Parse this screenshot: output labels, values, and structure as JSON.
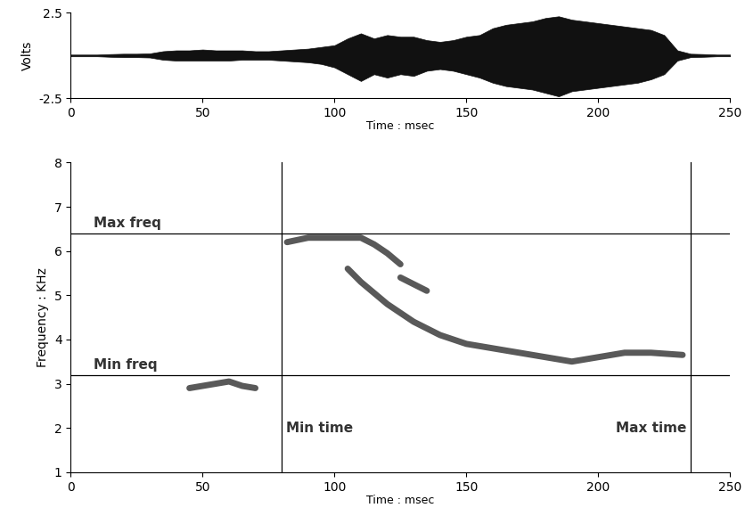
{
  "chart_data": [
    {
      "type": "area",
      "xlabel": "Time : msec",
      "ylabel": "Volts",
      "x": [
        0,
        5,
        10,
        15,
        20,
        25,
        30,
        35,
        40,
        45,
        50,
        55,
        60,
        65,
        70,
        75,
        80,
        85,
        90,
        95,
        100,
        105,
        110,
        115,
        120,
        125,
        130,
        135,
        140,
        145,
        150,
        155,
        160,
        165,
        170,
        175,
        180,
        185,
        190,
        195,
        200,
        205,
        210,
        215,
        220,
        225,
        230,
        235,
        240,
        245,
        250
      ],
      "series": [
        {
          "color": "#111111",
          "values": [
            0.05,
            0.05,
            0.05,
            0.08,
            0.1,
            0.1,
            0.12,
            0.25,
            0.3,
            0.3,
            0.35,
            0.3,
            0.3,
            0.3,
            0.25,
            0.25,
            0.3,
            0.35,
            0.4,
            0.5,
            0.6,
            1.0,
            1.3,
            1.0,
            1.2,
            1.1,
            1.1,
            0.9,
            0.8,
            0.9,
            1.1,
            1.2,
            1.6,
            1.8,
            1.9,
            2.0,
            2.2,
            2.3,
            2.1,
            2.0,
            1.9,
            1.8,
            1.7,
            1.6,
            1.5,
            1.2,
            0.3,
            0.1,
            0.08,
            0.05,
            0.05
          ]
        },
        {
          "color": "#111111",
          "values": [
            -0.05,
            -0.05,
            -0.05,
            -0.08,
            -0.1,
            -0.1,
            -0.12,
            -0.25,
            -0.3,
            -0.3,
            -0.3,
            -0.3,
            -0.3,
            -0.25,
            -0.25,
            -0.25,
            -0.3,
            -0.35,
            -0.4,
            -0.5,
            -0.7,
            -1.1,
            -1.5,
            -1.1,
            -1.3,
            -1.1,
            -1.2,
            -0.9,
            -0.8,
            -0.9,
            -1.1,
            -1.3,
            -1.6,
            -1.8,
            -1.9,
            -2.0,
            -2.2,
            -2.4,
            -2.1,
            -2.0,
            -1.9,
            -1.8,
            -1.7,
            -1.6,
            -1.4,
            -1.1,
            -0.3,
            -0.1,
            -0.08,
            -0.05,
            -0.05
          ]
        }
      ],
      "xlim": [
        0,
        250
      ],
      "xticks": [
        0,
        50,
        100,
        150,
        200,
        250
      ],
      "ylim": [
        -2.5,
        2.5
      ],
      "yticks": [
        -2.5,
        2.5
      ]
    },
    {
      "type": "line",
      "xlabel": "Time : msec",
      "ylabel": "Frequency : KHz",
      "series": [
        {
          "color": "#222222",
          "x": [
            45,
            50,
            55,
            60,
            65,
            70
          ],
          "values": [
            2.9,
            2.95,
            3.0,
            3.05,
            2.95,
            2.9
          ]
        },
        {
          "color": "#222222",
          "x": [
            82,
            90,
            100,
            110,
            115,
            120,
            125
          ],
          "values": [
            6.2,
            6.3,
            6.3,
            6.3,
            6.15,
            5.95,
            5.7
          ]
        },
        {
          "color": "#222222",
          "x": [
            125,
            130,
            135
          ],
          "values": [
            5.4,
            5.25,
            5.1
          ]
        },
        {
          "color": "#222222",
          "x": [
            105,
            110,
            120,
            130,
            140,
            150,
            160,
            170,
            180,
            190,
            200,
            210,
            220,
            232
          ],
          "values": [
            5.6,
            5.3,
            4.8,
            4.4,
            4.1,
            3.9,
            3.8,
            3.7,
            3.6,
            3.5,
            3.6,
            3.7,
            3.7,
            3.65
          ]
        }
      ],
      "annotations": [
        {
          "text": "Max freq",
          "axis": "y",
          "value": 6.4
        },
        {
          "text": "Min freq",
          "axis": "y",
          "value": 3.2
        },
        {
          "text": "Min time",
          "axis": "x",
          "value": 80
        },
        {
          "text": "Max time",
          "axis": "x",
          "value": 235
        }
      ],
      "xlim": [
        0,
        250
      ],
      "xticks": [
        0,
        50,
        100,
        150,
        200,
        250
      ],
      "ylim": [
        1,
        8
      ],
      "yticks": [
        1,
        2,
        3,
        4,
        5,
        6,
        7,
        8
      ]
    }
  ]
}
